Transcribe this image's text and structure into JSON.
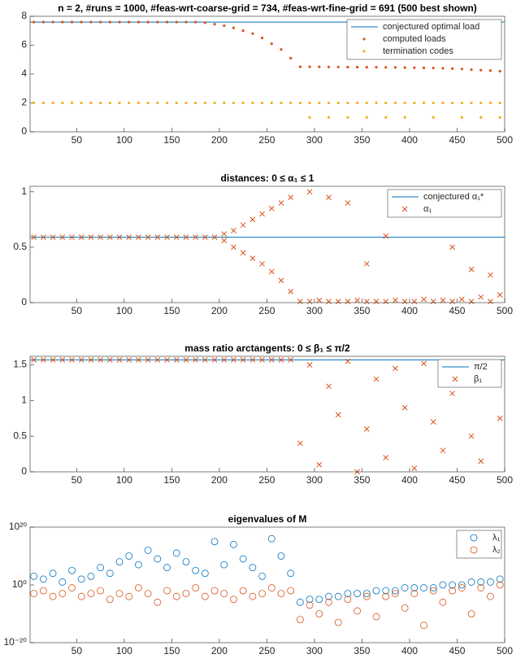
{
  "chart_data": [
    {
      "type": "scatter",
      "title": "n = 2, #runs = 1000, #feas-wrt-coarse-grid = 734, #feas-wrt-fine-grid = 691 (500 best shown)",
      "xlim": [
        1,
        500
      ],
      "xticks": [
        50,
        100,
        150,
        200,
        250,
        300,
        350,
        400,
        450,
        500
      ],
      "ylim": [
        0,
        8
      ],
      "yticks": [
        0,
        2,
        4,
        6,
        8
      ],
      "legend": "northeast",
      "series": [
        {
          "name": "conjectured optimal load",
          "color": "#0072bd",
          "marker": "line",
          "x": [
            1,
            500
          ],
          "values": [
            7.6,
            7.6
          ]
        },
        {
          "name": "computed loads",
          "color": "#d95319",
          "marker": "dot",
          "x": [
            5,
            15,
            25,
            35,
            45,
            55,
            65,
            75,
            85,
            95,
            105,
            115,
            125,
            135,
            145,
            155,
            165,
            175,
            185,
            195,
            205,
            215,
            225,
            235,
            245,
            255,
            265,
            275,
            285,
            295,
            305,
            315,
            325,
            335,
            345,
            355,
            365,
            375,
            385,
            395,
            405,
            415,
            425,
            435,
            445,
            455,
            465,
            475,
            485,
            495
          ],
          "values": [
            7.6,
            7.6,
            7.6,
            7.6,
            7.6,
            7.6,
            7.6,
            7.6,
            7.6,
            7.6,
            7.6,
            7.6,
            7.6,
            7.6,
            7.6,
            7.6,
            7.6,
            7.6,
            7.55,
            7.45,
            7.35,
            7.2,
            7.0,
            6.8,
            6.5,
            6.1,
            5.7,
            5.1,
            4.5,
            4.5,
            4.5,
            4.49,
            4.49,
            4.48,
            4.48,
            4.47,
            4.47,
            4.46,
            4.46,
            4.45,
            4.44,
            4.43,
            4.42,
            4.4,
            4.38,
            4.35,
            4.3,
            4.27,
            4.24,
            4.2
          ]
        },
        {
          "name": "termination codes",
          "color": "#edb120",
          "marker": "dot",
          "x": [
            5,
            15,
            25,
            35,
            45,
            55,
            65,
            75,
            85,
            95,
            105,
            115,
            125,
            135,
            145,
            155,
            165,
            175,
            185,
            195,
            205,
            215,
            225,
            235,
            245,
            255,
            265,
            275,
            285,
            295,
            305,
            315,
            325,
            335,
            345,
            355,
            365,
            375,
            385,
            395,
            405,
            415,
            425,
            435,
            445,
            455,
            465,
            475,
            485,
            495,
            295,
            315,
            335,
            355,
            375,
            395,
            425,
            455,
            475,
            495
          ],
          "values": [
            2,
            2,
            2,
            2,
            2,
            2,
            2,
            2,
            2,
            2,
            2,
            2,
            2,
            2,
            2,
            2,
            2,
            2,
            2,
            2,
            2,
            2,
            2,
            2,
            2,
            2,
            2,
            2,
            2,
            2,
            2,
            2,
            2,
            2,
            2,
            2,
            2,
            2,
            2,
            2,
            2,
            2,
            2,
            2,
            2,
            2,
            2,
            2,
            2,
            2,
            1,
            1,
            1,
            1,
            1,
            1,
            1,
            1,
            1,
            1
          ]
        }
      ]
    },
    {
      "type": "scatter",
      "title": "distances: 0 ≤ α₁ ≤ 1",
      "xlim": [
        1,
        500
      ],
      "xticks": [
        50,
        100,
        150,
        200,
        250,
        300,
        350,
        400,
        450,
        500
      ],
      "ylim": [
        0,
        1.05
      ],
      "yticks": [
        0,
        0.5,
        1
      ],
      "legend": "northeast",
      "series": [
        {
          "name": "conjectured α₁*",
          "color": "#0072bd",
          "marker": "line",
          "x": [
            1,
            500
          ],
          "values": [
            0.59,
            0.59
          ]
        },
        {
          "name": "α₁",
          "color": "#d95319",
          "marker": "x",
          "x": [
            5,
            15,
            25,
            35,
            45,
            55,
            65,
            75,
            85,
            95,
            105,
            115,
            125,
            135,
            145,
            155,
            165,
            175,
            185,
            195,
            205,
            215,
            225,
            235,
            245,
            255,
            265,
            275,
            205,
            215,
            225,
            235,
            245,
            255,
            265,
            275,
            285,
            295,
            305,
            315,
            325,
            335,
            345,
            355,
            365,
            375,
            385,
            395,
            405,
            415,
            425,
            435,
            445,
            455,
            465,
            475,
            485,
            495,
            295,
            315,
            335,
            355,
            375,
            395,
            425,
            445,
            465,
            485
          ],
          "values": [
            0.59,
            0.59,
            0.59,
            0.59,
            0.59,
            0.59,
            0.59,
            0.59,
            0.59,
            0.59,
            0.59,
            0.59,
            0.59,
            0.59,
            0.59,
            0.59,
            0.59,
            0.59,
            0.59,
            0.59,
            0.62,
            0.65,
            0.7,
            0.75,
            0.8,
            0.85,
            0.9,
            0.95,
            0.56,
            0.5,
            0.45,
            0.4,
            0.35,
            0.28,
            0.2,
            0.1,
            0.01,
            1.0,
            0.02,
            0.95,
            0.01,
            0.9,
            0.02,
            0.35,
            0.01,
            0.6,
            0.02,
            0.8,
            0.01,
            0.03,
            0.95,
            0.02,
            0.5,
            0.03,
            0.3,
            0.05,
            0.25,
            0.07,
            0.01,
            0.01,
            0.01,
            0.01,
            0.01,
            0.01,
            0.01,
            0.01,
            0.01,
            0.01
          ]
        }
      ]
    },
    {
      "type": "scatter",
      "title": "mass ratio arctangents: 0 ≤ β₁ ≤ π/2",
      "xlim": [
        1,
        500
      ],
      "xticks": [
        50,
        100,
        150,
        200,
        250,
        300,
        350,
        400,
        450,
        500
      ],
      "ylim": [
        0,
        1.62
      ],
      "yticks": [
        0,
        0.5,
        1,
        1.5
      ],
      "legend": "northeast",
      "series": [
        {
          "name": "π/2",
          "color": "#0072bd",
          "marker": "line",
          "x": [
            1,
            500
          ],
          "values": [
            1.5708,
            1.5708
          ]
        },
        {
          "name": "β₁",
          "color": "#d95319",
          "marker": "x",
          "x": [
            5,
            15,
            25,
            35,
            45,
            55,
            65,
            75,
            85,
            95,
            105,
            115,
            125,
            135,
            145,
            155,
            165,
            175,
            185,
            195,
            205,
            215,
            225,
            235,
            245,
            255,
            265,
            275,
            285,
            295,
            305,
            315,
            325,
            335,
            345,
            355,
            365,
            375,
            385,
            395,
            405,
            415,
            425,
            435,
            445,
            455,
            465,
            475,
            485,
            495
          ],
          "values": [
            1.57,
            1.57,
            1.57,
            1.57,
            1.57,
            1.57,
            1.57,
            1.57,
            1.57,
            1.57,
            1.57,
            1.57,
            1.57,
            1.57,
            1.57,
            1.57,
            1.57,
            1.57,
            1.57,
            1.57,
            1.57,
            1.57,
            1.57,
            1.57,
            1.57,
            1.57,
            1.57,
            1.57,
            0.4,
            1.5,
            0.1,
            1.2,
            0.8,
            1.55,
            0.0,
            0.6,
            1.3,
            0.2,
            1.45,
            0.9,
            0.05,
            1.52,
            0.7,
            0.3,
            1.1,
            1.5,
            0.5,
            0.15,
            1.3,
            0.75
          ]
        }
      ]
    },
    {
      "type": "scatter",
      "title": "eigenvalues of M",
      "log": true,
      "xlim": [
        1,
        500
      ],
      "xticks": [
        50,
        100,
        150,
        200,
        250,
        300,
        350,
        400,
        450,
        500
      ],
      "ylim": [
        1e-20,
        1e+20
      ],
      "yticks": [
        {
          "value": 1e-20,
          "label": "10⁻²⁰"
        },
        {
          "value": 1,
          "label": "10⁰"
        },
        {
          "value": 1e+20,
          "label": "10²⁰"
        }
      ],
      "legend": "northeast",
      "series": [
        {
          "name": "λ₁",
          "color": "#0072bd",
          "marker": "o",
          "x": [
            5,
            15,
            25,
            35,
            45,
            55,
            65,
            75,
            85,
            95,
            105,
            115,
            125,
            135,
            145,
            155,
            165,
            175,
            185,
            195,
            205,
            215,
            225,
            235,
            245,
            255,
            265,
            275,
            285,
            295,
            305,
            315,
            325,
            335,
            345,
            355,
            365,
            375,
            385,
            395,
            405,
            415,
            425,
            435,
            445,
            455,
            465,
            475,
            485,
            495
          ],
          "values": [
            1000.0,
            100.0,
            10000.0,
            10.0,
            100000.0,
            100.0,
            1000.0,
            1000000.0,
            10000.0,
            100000000.0,
            10000000000.0,
            10000000.0,
            1000000000000.0,
            1000000000.0,
            1000000.0,
            100000000000.0,
            100000000.0,
            100000.0,
            10000.0,
            1000000000000000.0,
            10000000.0,
            100000000000000.0,
            1000000000.0,
            1000000.0,
            1000.0,
            1e+16,
            10000000000.0,
            10000.0,
            1e-06,
            1e-05,
            1e-05,
            0.0001,
            0.0001,
            0.001,
            0.001,
            0.001,
            0.01,
            0.01,
            0.01,
            0.1,
            0.1,
            0.1,
            0.1,
            1,
            1,
            1,
            10.0,
            10.0,
            10.0,
            100.0
          ]
        },
        {
          "name": "λ₂",
          "color": "#d95319",
          "marker": "o",
          "x": [
            5,
            15,
            25,
            35,
            45,
            55,
            65,
            75,
            85,
            95,
            105,
            115,
            125,
            135,
            145,
            155,
            165,
            175,
            185,
            195,
            205,
            215,
            225,
            235,
            245,
            255,
            265,
            275,
            285,
            295,
            305,
            315,
            325,
            335,
            345,
            355,
            365,
            375,
            385,
            395,
            405,
            415,
            425,
            435,
            445,
            455,
            465,
            475,
            485,
            495
          ],
          "values": [
            0.001,
            0.01,
            0.0001,
            0.001,
            0.1,
            0.0001,
            0.001,
            0.01,
            1e-05,
            0.001,
            0.0001,
            0.1,
            0.001,
            1e-06,
            0.01,
            0.0001,
            0.001,
            0.1,
            0.0001,
            0.01,
            0.001,
            1e-05,
            0.01,
            0.0001,
            0.001,
            0.1,
            0.001,
            0.01,
            1e-12,
            1e-07,
            1e-10,
            1e-06,
            1e-13,
            1e-05,
            1e-09,
            0.0001,
            1e-11,
            0.0001,
            0.001,
            1e-08,
            0.001,
            1e-14,
            0.01,
            1e-06,
            0.01,
            0.1,
            1e-10,
            0.1,
            0.0001,
            1
          ]
        }
      ]
    }
  ]
}
